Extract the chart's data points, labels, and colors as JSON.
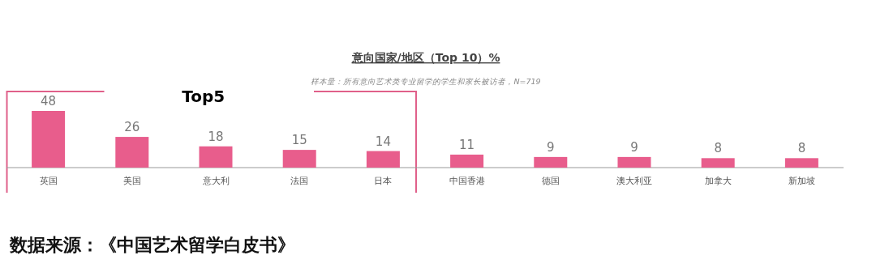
{
  "chart_data": {
    "type": "bar",
    "title": "意向国家/地区（Top 10）%",
    "subtitle": "样本量：所有意向艺术类专业留学的学生和家长被访者，N=719",
    "categories": [
      "英国",
      "美国",
      "意大利",
      "法国",
      "日本",
      "中国香港",
      "德国",
      "澳大利亚",
      "加拿大",
      "新加坡"
    ],
    "values": [
      48,
      26,
      18,
      15,
      14,
      11,
      9,
      9,
      8,
      8
    ],
    "color": "#e85d8c",
    "data_labels": true,
    "annotations": [
      "Top5",
      "数据来源：《中国艺术留学白皮书》"
    ]
  }
}
